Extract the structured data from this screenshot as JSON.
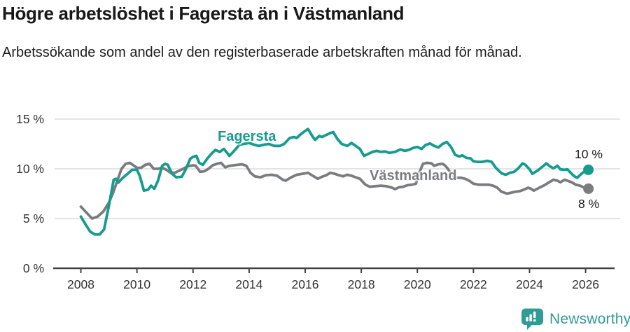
{
  "title": "Högre arbetslöshet i Fagersta än i Västmanland",
  "subtitle": "Arbetssökande som andel av den registerbaserade arbetskraften månad för månad.",
  "footer": {
    "brand": "Newsworthy"
  },
  "colors": {
    "fagersta": "#169c8d",
    "vastmanland": "#7b7c7f",
    "grid": "#dcdcdc",
    "axis": "#424242",
    "tick_text": "#333333",
    "brand_teal": "#2f9c95",
    "title_text": "#181818"
  },
  "chart_data": {
    "type": "line",
    "title": "Högre arbetslöshet i Fagersta än i Västmanland",
    "subtitle": "Arbetssökande som andel av den registerbaserade arbetskraften månad för månad.",
    "xlabel": "",
    "ylabel": "",
    "xlim": [
      2008,
      2026.2
    ],
    "ylim": [
      0,
      15
    ],
    "grid": "horizontal",
    "legend_position": "inline-labels-on-lines",
    "x_ticks": [
      {
        "value": 2008,
        "label": "2008"
      },
      {
        "value": 2010,
        "label": "2010"
      },
      {
        "value": 2012,
        "label": "2012"
      },
      {
        "value": 2014,
        "label": "2014"
      },
      {
        "value": 2016,
        "label": "2016"
      },
      {
        "value": 2018,
        "label": "2018"
      },
      {
        "value": 2020,
        "label": "2020"
      },
      {
        "value": 2022,
        "label": "2022"
      },
      {
        "value": 2024,
        "label": "2024"
      },
      {
        "value": 2026,
        "label": "2026"
      }
    ],
    "y_ticks": [
      {
        "value": 0,
        "label": "0 %"
      },
      {
        "value": 5,
        "label": "5 %"
      },
      {
        "value": 10,
        "label": "10 %"
      },
      {
        "value": 15,
        "label": "15 %"
      }
    ],
    "series": [
      {
        "name": "Fagersta",
        "color": "#169c8d",
        "end_label": "10 %",
        "points": [
          [
            2008,
            5.2
          ],
          [
            2008.17,
            4.4
          ],
          [
            2008.33,
            3.7
          ],
          [
            2008.5,
            3.4
          ],
          [
            2008.67,
            3.4
          ],
          [
            2008.83,
            3.9
          ],
          [
            2009,
            6.3
          ],
          [
            2009.17,
            8.9
          ],
          [
            2009.25,
            9.0
          ],
          [
            2009.33,
            8.6
          ],
          [
            2009.5,
            9.1
          ],
          [
            2009.67,
            9.5
          ],
          [
            2009.83,
            9.9
          ],
          [
            2010,
            9.9
          ],
          [
            2010.1,
            9.3
          ],
          [
            2010.25,
            7.8
          ],
          [
            2010.4,
            7.9
          ],
          [
            2010.5,
            8.3
          ],
          [
            2010.62,
            8.0
          ],
          [
            2010.75,
            8.8
          ],
          [
            2010.9,
            10.3
          ],
          [
            2011,
            10.5
          ],
          [
            2011.1,
            10.4
          ],
          [
            2011.25,
            9.5
          ],
          [
            2011.4,
            9.15
          ],
          [
            2011.6,
            9.2
          ],
          [
            2011.75,
            10.0
          ],
          [
            2011.9,
            11.0
          ],
          [
            2012,
            11.2
          ],
          [
            2012.12,
            11.3
          ],
          [
            2012.22,
            10.6
          ],
          [
            2012.35,
            10.4
          ],
          [
            2012.5,
            11.0
          ],
          [
            2012.65,
            11.5
          ],
          [
            2012.8,
            11.9
          ],
          [
            2012.95,
            11.7
          ],
          [
            2013.1,
            12.0
          ],
          [
            2013.3,
            11.3
          ],
          [
            2013.5,
            11.9
          ],
          [
            2013.65,
            12.4
          ],
          [
            2013.8,
            12.5
          ],
          [
            2014,
            12.6
          ],
          [
            2014.2,
            12.4
          ],
          [
            2014.35,
            12.3
          ],
          [
            2014.5,
            12.4
          ],
          [
            2014.7,
            12.5
          ],
          [
            2014.9,
            12.3
          ],
          [
            2015.1,
            12.3
          ],
          [
            2015.25,
            12.5
          ],
          [
            2015.45,
            13.1
          ],
          [
            2015.6,
            13.2
          ],
          [
            2015.7,
            13.1
          ],
          [
            2015.85,
            13.5
          ],
          [
            2016,
            13.8
          ],
          [
            2016.1,
            14.0
          ],
          [
            2016.25,
            13.3
          ],
          [
            2016.35,
            12.9
          ],
          [
            2016.5,
            13.3
          ],
          [
            2016.6,
            13.2
          ],
          [
            2016.75,
            13.4
          ],
          [
            2016.9,
            13.6
          ],
          [
            2017,
            13.7
          ],
          [
            2017.15,
            13.0
          ],
          [
            2017.3,
            12.5
          ],
          [
            2017.5,
            12.3
          ],
          [
            2017.65,
            12.6
          ],
          [
            2017.8,
            12.3
          ],
          [
            2017.95,
            12.0
          ],
          [
            2018.1,
            11.3
          ],
          [
            2018.25,
            11.5
          ],
          [
            2018.4,
            11.7
          ],
          [
            2018.55,
            11.8
          ],
          [
            2018.7,
            11.7
          ],
          [
            2018.85,
            11.75
          ],
          [
            2019,
            11.6
          ],
          [
            2019.2,
            11.7
          ],
          [
            2019.4,
            11.95
          ],
          [
            2019.55,
            11.8
          ],
          [
            2019.7,
            11.9
          ],
          [
            2019.85,
            12.1
          ],
          [
            2020,
            12.2
          ],
          [
            2020.15,
            12.0
          ],
          [
            2020.3,
            12.4
          ],
          [
            2020.45,
            12.55
          ],
          [
            2020.6,
            12.3
          ],
          [
            2020.75,
            12.15
          ],
          [
            2020.9,
            12.5
          ],
          [
            2021.05,
            12.7
          ],
          [
            2021.2,
            12.2
          ],
          [
            2021.35,
            11.4
          ],
          [
            2021.5,
            11.25
          ],
          [
            2021.6,
            11.35
          ],
          [
            2021.75,
            11.1
          ],
          [
            2021.9,
            11.05
          ],
          [
            2022,
            10.75
          ],
          [
            2022.15,
            10.7
          ],
          [
            2022.3,
            10.7
          ],
          [
            2022.5,
            10.8
          ],
          [
            2022.65,
            10.7
          ],
          [
            2022.8,
            10.1
          ],
          [
            2023,
            9.55
          ],
          [
            2023.15,
            9.4
          ],
          [
            2023.3,
            9.6
          ],
          [
            2023.45,
            9.7
          ],
          [
            2023.6,
            10.05
          ],
          [
            2023.75,
            10.55
          ],
          [
            2023.85,
            10.4
          ],
          [
            2024,
            9.95
          ],
          [
            2024.1,
            9.5
          ],
          [
            2024.3,
            9.85
          ],
          [
            2024.5,
            10.3
          ],
          [
            2024.6,
            10.55
          ],
          [
            2024.7,
            10.3
          ],
          [
            2024.85,
            10.05
          ],
          [
            2025,
            10.3
          ],
          [
            2025.1,
            9.95
          ],
          [
            2025.25,
            9.9
          ],
          [
            2025.35,
            9.95
          ],
          [
            2025.5,
            9.5
          ],
          [
            2025.6,
            9.25
          ],
          [
            2025.7,
            9.1
          ],
          [
            2025.85,
            9.5
          ],
          [
            2026,
            9.8
          ],
          [
            2026.1,
            9.9
          ]
        ]
      },
      {
        "name": "Västmanland",
        "color": "#7b7c7f",
        "end_label": "8 %",
        "points": [
          [
            2008,
            6.2
          ],
          [
            2008.2,
            5.6
          ],
          [
            2008.4,
            5.0
          ],
          [
            2008.6,
            5.2
          ],
          [
            2008.8,
            5.7
          ],
          [
            2009,
            6.6
          ],
          [
            2009.15,
            7.6
          ],
          [
            2009.3,
            8.8
          ],
          [
            2009.45,
            10.0
          ],
          [
            2009.6,
            10.5
          ],
          [
            2009.75,
            10.6
          ],
          [
            2009.9,
            10.3
          ],
          [
            2010,
            10.1
          ],
          [
            2010.15,
            10.1
          ],
          [
            2010.3,
            10.4
          ],
          [
            2010.45,
            10.5
          ],
          [
            2010.6,
            10.0
          ],
          [
            2010.75,
            10.0
          ],
          [
            2010.9,
            10.1
          ],
          [
            2011.05,
            9.9
          ],
          [
            2011.2,
            9.6
          ],
          [
            2011.35,
            9.6
          ],
          [
            2011.5,
            9.8
          ],
          [
            2011.65,
            10.0
          ],
          [
            2011.8,
            10.25
          ],
          [
            2012,
            10.35
          ],
          [
            2012.1,
            10.3
          ],
          [
            2012.25,
            9.7
          ],
          [
            2012.4,
            9.75
          ],
          [
            2012.55,
            10.0
          ],
          [
            2012.7,
            10.35
          ],
          [
            2012.85,
            10.5
          ],
          [
            2013,
            10.6
          ],
          [
            2013.15,
            10.15
          ],
          [
            2013.3,
            10.3
          ],
          [
            2013.45,
            10.35
          ],
          [
            2013.6,
            10.4
          ],
          [
            2013.75,
            10.45
          ],
          [
            2013.9,
            10.3
          ],
          [
            2014.05,
            9.6
          ],
          [
            2014.2,
            9.25
          ],
          [
            2014.4,
            9.15
          ],
          [
            2014.6,
            9.35
          ],
          [
            2014.8,
            9.4
          ],
          [
            2015,
            9.3
          ],
          [
            2015.2,
            8.9
          ],
          [
            2015.3,
            8.8
          ],
          [
            2015.5,
            9.15
          ],
          [
            2015.7,
            9.4
          ],
          [
            2015.9,
            9.5
          ],
          [
            2016.1,
            9.6
          ],
          [
            2016.3,
            9.25
          ],
          [
            2016.45,
            9.0
          ],
          [
            2016.6,
            9.2
          ],
          [
            2016.75,
            9.35
          ],
          [
            2016.9,
            9.6
          ],
          [
            2017.05,
            9.5
          ],
          [
            2017.2,
            9.35
          ],
          [
            2017.35,
            9.25
          ],
          [
            2017.5,
            9.4
          ],
          [
            2017.65,
            9.3
          ],
          [
            2017.8,
            9.15
          ],
          [
            2017.95,
            9.0
          ],
          [
            2018.15,
            8.4
          ],
          [
            2018.3,
            8.2
          ],
          [
            2018.5,
            8.25
          ],
          [
            2018.7,
            8.3
          ],
          [
            2018.9,
            8.25
          ],
          [
            2019.1,
            8.1
          ],
          [
            2019.2,
            7.95
          ],
          [
            2019.35,
            8.15
          ],
          [
            2019.5,
            8.2
          ],
          [
            2019.65,
            8.35
          ],
          [
            2019.8,
            8.4
          ],
          [
            2019.95,
            8.5
          ],
          [
            2020.1,
            9.8
          ],
          [
            2020.2,
            10.5
          ],
          [
            2020.35,
            10.6
          ],
          [
            2020.5,
            10.55
          ],
          [
            2020.6,
            10.3
          ],
          [
            2020.75,
            10.45
          ],
          [
            2020.9,
            10.5
          ],
          [
            2021,
            10.3
          ],
          [
            2021.1,
            9.95
          ],
          [
            2021.25,
            9.3
          ],
          [
            2021.4,
            9.1
          ],
          [
            2021.55,
            9.1
          ],
          [
            2021.7,
            9.0
          ],
          [
            2021.85,
            8.8
          ],
          [
            2022,
            8.5
          ],
          [
            2022.2,
            8.4
          ],
          [
            2022.4,
            8.4
          ],
          [
            2022.55,
            8.4
          ],
          [
            2022.7,
            8.3
          ],
          [
            2022.85,
            8.1
          ],
          [
            2023,
            7.7
          ],
          [
            2023.2,
            7.5
          ],
          [
            2023.35,
            7.6
          ],
          [
            2023.5,
            7.7
          ],
          [
            2023.65,
            7.75
          ],
          [
            2023.8,
            7.9
          ],
          [
            2023.95,
            8.1
          ],
          [
            2024.05,
            8.0
          ],
          [
            2024.15,
            7.8
          ],
          [
            2024.35,
            8.1
          ],
          [
            2024.5,
            8.3
          ],
          [
            2024.7,
            8.65
          ],
          [
            2024.85,
            8.9
          ],
          [
            2025,
            8.8
          ],
          [
            2025.1,
            8.65
          ],
          [
            2025.25,
            8.9
          ],
          [
            2025.35,
            8.8
          ],
          [
            2025.5,
            8.65
          ],
          [
            2025.65,
            8.4
          ],
          [
            2025.8,
            8.3
          ],
          [
            2025.95,
            8.1
          ],
          [
            2026.1,
            8.0
          ]
        ]
      }
    ]
  }
}
